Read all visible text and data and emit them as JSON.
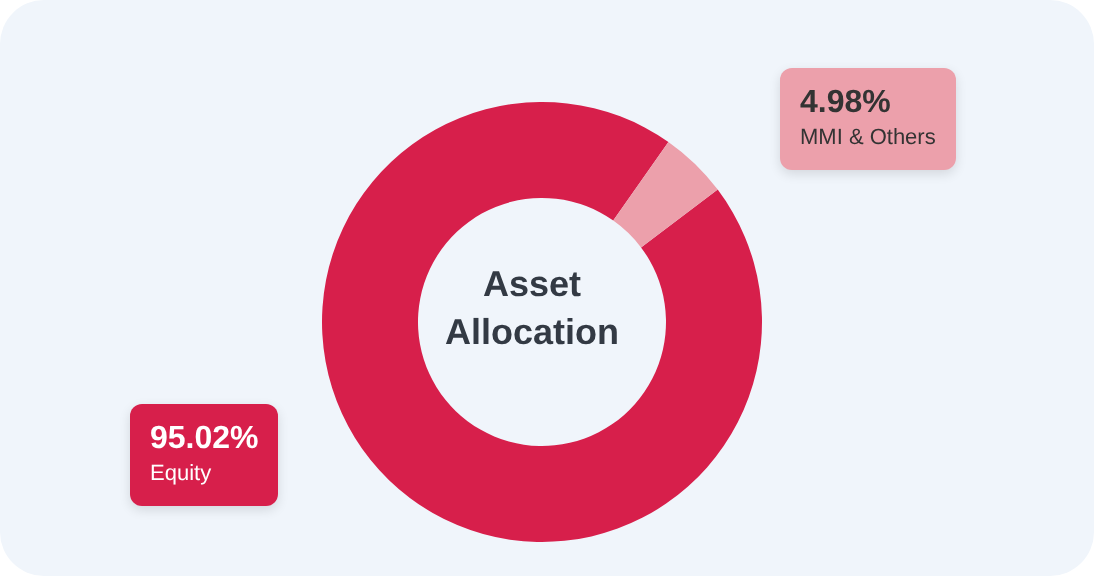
{
  "chart_data": {
    "type": "donut",
    "title": "Asset Allocation",
    "categories": [
      "Equity",
      "MMI & Others"
    ],
    "values": [
      95.02,
      4.98
    ],
    "colors": [
      "#d71f4b",
      "#eca0ab"
    ],
    "value_labels": [
      "95.02%",
      "4.98%"
    ]
  }
}
